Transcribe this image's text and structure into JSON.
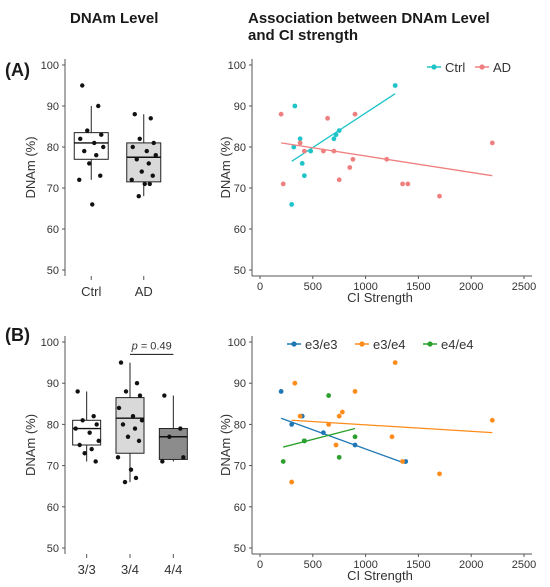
{
  "headers": {
    "left": "DNAm Level",
    "right_line1": "Association between DNAm Level",
    "right_line2": "and CI strength"
  },
  "panels": {
    "a": "(A)",
    "b": "(B)"
  },
  "colors": {
    "ctrl": "#1fc4c8",
    "ad": "#f08080",
    "e33": "#1f77b4",
    "e34": "#ff8c1a",
    "e44": "#2ca02c",
    "box_ctrl": "#ffffff",
    "box_ad": "#d9d9d9",
    "box_33": "#ffffff",
    "box_34": "#d9d9d9",
    "box_44": "#8c8c8c"
  },
  "chart_data": [
    {
      "id": "A-box",
      "type": "box",
      "ylabel": "DNAm  (%)",
      "ylim": [
        50,
        100
      ],
      "yticks": [
        50,
        60,
        70,
        80,
        90,
        100
      ],
      "categories": [
        "Ctrl",
        "AD"
      ],
      "boxes": [
        {
          "q1": 77,
          "median": 81,
          "q3": 83.5,
          "whisker_low": 72,
          "whisker_high": 90,
          "points": [
            95,
            90,
            84,
            83,
            82,
            81,
            80,
            79,
            78,
            76,
            73,
            72,
            66
          ]
        },
        {
          "q1": 71.5,
          "median": 77.5,
          "q3": 81,
          "whisker_low": 68,
          "whisker_high": 88,
          "points": [
            88,
            87,
            82,
            81,
            80,
            79,
            78,
            77,
            76,
            74,
            73,
            72,
            71,
            71,
            68
          ]
        }
      ]
    },
    {
      "id": "A-scatter",
      "type": "scatter",
      "xlabel": "CI  Strength",
      "ylabel": "DNAm  (%)",
      "xlim": [
        0,
        2500
      ],
      "ylim": [
        50,
        100
      ],
      "xticks": [
        0,
        500,
        1000,
        1500,
        2000,
        2500
      ],
      "yticks": [
        50,
        60,
        70,
        80,
        90,
        100
      ],
      "legend_position": "top-right",
      "series": [
        {
          "name": "Ctrl",
          "x": [
            300,
            320,
            330,
            380,
            400,
            420,
            480,
            700,
            720,
            750,
            1280
          ],
          "y": [
            66,
            80,
            90,
            82,
            76,
            73,
            79,
            82,
            83,
            84,
            95
          ],
          "fit": [
            [
              300,
              76.5
            ],
            [
              1280,
              93
            ]
          ]
        },
        {
          "name": "AD",
          "x": [
            200,
            220,
            380,
            420,
            600,
            640,
            700,
            750,
            850,
            880,
            900,
            1200,
            1350,
            1400,
            1700,
            2200
          ],
          "y": [
            88,
            71,
            81,
            79,
            79,
            87,
            79,
            72,
            75,
            77,
            88,
            77,
            71,
            71,
            68,
            81
          ],
          "fit": [
            [
              200,
              81
            ],
            [
              2200,
              73
            ]
          ]
        }
      ]
    },
    {
      "id": "B-box",
      "type": "box",
      "ylabel": "DNAm  (%)",
      "ylim": [
        50,
        100
      ],
      "yticks": [
        50,
        60,
        70,
        80,
        90,
        100
      ],
      "categories": [
        "3/3",
        "3/4",
        "4/4"
      ],
      "annotation": "= 0.49",
      "annotation_italic": "p",
      "boxes": [
        {
          "q1": 75,
          "median": 79,
          "q3": 81,
          "whisker_low": 71,
          "whisker_high": 88,
          "points": [
            88,
            82,
            81,
            80,
            79,
            78,
            76,
            75,
            74,
            73,
            71
          ]
        },
        {
          "q1": 73,
          "median": 81.5,
          "q3": 86.5,
          "whisker_low": 66,
          "whisker_high": 95,
          "points": [
            95,
            90,
            88,
            87,
            84,
            82,
            81,
            80,
            79,
            77,
            76,
            72,
            69,
            67,
            66
          ]
        },
        {
          "q1": 71.5,
          "median": 77,
          "q3": 79,
          "whisker_low": 71,
          "whisker_high": 87,
          "points": [
            87,
            79,
            77,
            72,
            71
          ]
        }
      ]
    },
    {
      "id": "B-scatter",
      "type": "scatter",
      "xlabel": "CI  Strength",
      "ylabel": "DNAm  (%)",
      "xlim": [
        0,
        2500
      ],
      "ylim": [
        50,
        100
      ],
      "xticks": [
        0,
        500,
        1000,
        1500,
        2000,
        2500
      ],
      "yticks": [
        50,
        60,
        70,
        80,
        90,
        100
      ],
      "legend_position": "top-left",
      "series": [
        {
          "name": "e3/e3",
          "x": [
            200,
            300,
            400,
            420,
            600,
            900,
            1380
          ],
          "y": [
            88,
            80,
            82,
            76,
            78,
            75,
            71
          ],
          "fit": [
            [
              200,
              81.5
            ],
            [
              1380,
              70.5
            ]
          ]
        },
        {
          "name": "e3/e4",
          "x": [
            300,
            330,
            380,
            650,
            720,
            750,
            780,
            900,
            1250,
            1280,
            1350,
            1700,
            2200
          ],
          "y": [
            66,
            90,
            82,
            80,
            75,
            82,
            83,
            88,
            77,
            95,
            71,
            68,
            81
          ],
          "fit": [
            [
              300,
              81
            ],
            [
              2200,
              78
            ]
          ]
        },
        {
          "name": "e4/e4",
          "x": [
            220,
            420,
            650,
            750,
            900
          ],
          "y": [
            71,
            76,
            87,
            72,
            77
          ],
          "fit": [
            [
              220,
              74.5
            ],
            [
              900,
              79
            ]
          ]
        }
      ]
    }
  ]
}
